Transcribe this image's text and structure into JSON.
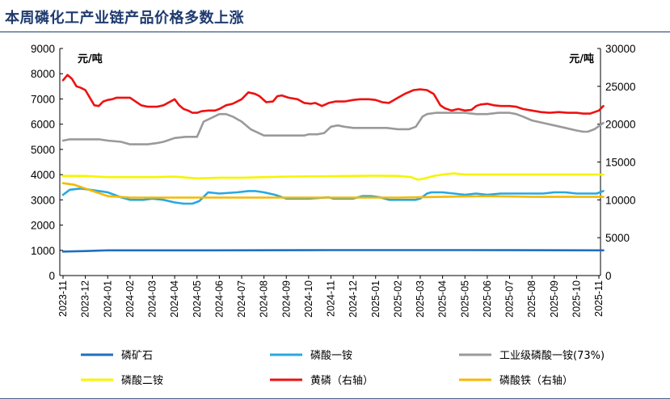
{
  "title": "本周磷化工产业链产品价格多数上涨",
  "chart_data": {
    "type": "line",
    "left_unit": "元/吨",
    "right_unit": "元/吨",
    "y_left": {
      "min": 0,
      "max": 9000,
      "ticks": [
        "0",
        "1000",
        "2000",
        "3000",
        "4000",
        "5000",
        "6000",
        "7000",
        "8000",
        "9000"
      ]
    },
    "y_right": {
      "min": 0,
      "max": 30000,
      "ticks": [
        "0",
        "5000",
        "10000",
        "15000",
        "20000",
        "25000",
        "30000"
      ]
    },
    "x_ticks": [
      "2023-11",
      "2023-12",
      "2024-01",
      "2024-02",
      "2024-03",
      "2024-04",
      "2024-05",
      "2024-06",
      "2024-07",
      "2024-08",
      "2024-09",
      "2024-10",
      "2024-11",
      "2024-12",
      "2025-01",
      "2025-02",
      "2025-03",
      "2025-04",
      "2025-05",
      "2025-06",
      "2025-07",
      "2025-08",
      "2025-09",
      "2025-10",
      "2025-11"
    ],
    "series": [
      {
        "name": "磷矿石",
        "axis": "left",
        "color": "#1f6fbf",
        "x": [
          0,
          1,
          2,
          6,
          12,
          18,
          24.2
        ],
        "y": [
          950,
          970,
          1000,
          1000,
          1010,
          1010,
          1000
        ]
      },
      {
        "name": "磷酸一铵",
        "axis": "left",
        "color": "#28a8e0",
        "x": [
          0,
          0.3,
          0.8,
          1.2,
          2,
          2.6,
          3,
          3.6,
          4,
          4.5,
          5,
          5.4,
          5.8,
          6.1,
          6.5,
          7,
          7.8,
          8.3,
          8.6,
          9,
          9.5,
          10,
          11,
          11.9,
          12.1,
          12.5,
          13,
          13.4,
          13.8,
          14.2,
          14.6,
          15.1,
          15.5,
          15.8,
          16,
          16.3,
          16.5,
          17,
          17.5,
          18,
          18.5,
          19,
          19.6,
          20,
          20.5,
          21,
          21.5,
          22,
          22.5,
          23,
          23.5,
          23.9,
          24.2
        ],
        "y": [
          3200,
          3400,
          3450,
          3400,
          3300,
          3100,
          3000,
          3000,
          3050,
          3000,
          2900,
          2850,
          2850,
          2950,
          3300,
          3250,
          3300,
          3350,
          3350,
          3300,
          3200,
          3050,
          3050,
          3100,
          3050,
          3050,
          3050,
          3150,
          3150,
          3100,
          3000,
          3000,
          3000,
          3000,
          3050,
          3250,
          3300,
          3300,
          3250,
          3200,
          3250,
          3200,
          3250,
          3250,
          3250,
          3250,
          3250,
          3300,
          3300,
          3250,
          3250,
          3250,
          3350
        ]
      },
      {
        "name": "工业级磷酸一铵(73%)",
        "axis": "left",
        "color": "#9a9a9a",
        "x": [
          0,
          0.3,
          1,
          1.6,
          2,
          2.6,
          3,
          3.8,
          4.2,
          4.5,
          5,
          5.5,
          5.8,
          6,
          6.3,
          7,
          7.3,
          7.6,
          8,
          8.4,
          9,
          10,
          10.8,
          11,
          11.4,
          11.7,
          12,
          12.3,
          12.6,
          13,
          13.5,
          14,
          14.5,
          15,
          15.5,
          15.8,
          16.1,
          16.3,
          16.7,
          17,
          17.5,
          18,
          18.5,
          19,
          19.5,
          20,
          20.3,
          20.6,
          21,
          21.5,
          22,
          22.5,
          23,
          23.3,
          23.5,
          23.8,
          24.2
        ],
        "y": [
          5350,
          5400,
          5400,
          5400,
          5350,
          5300,
          5200,
          5200,
          5250,
          5300,
          5450,
          5500,
          5500,
          5500,
          6100,
          6400,
          6400,
          6300,
          6100,
          5800,
          5550,
          5550,
          5550,
          5600,
          5600,
          5650,
          5900,
          5950,
          5900,
          5850,
          5850,
          5850,
          5850,
          5800,
          5800,
          5900,
          6300,
          6400,
          6450,
          6450,
          6450,
          6450,
          6400,
          6400,
          6450,
          6450,
          6400,
          6300,
          6150,
          6050,
          5950,
          5850,
          5750,
          5700,
          5700,
          5800,
          6050
        ]
      },
      {
        "name": "磷酸二铵",
        "axis": "left",
        "color": "#f5f500",
        "x": [
          0,
          1,
          2,
          3,
          4,
          5,
          6,
          7,
          8,
          9,
          10,
          11,
          12,
          13,
          14,
          15,
          15.6,
          15.9,
          16.2,
          16.6,
          17,
          17.5,
          18,
          19,
          20,
          21,
          22,
          23,
          24.2
        ],
        "y": [
          3950,
          3950,
          3900,
          3900,
          3900,
          3920,
          3850,
          3880,
          3880,
          3900,
          3920,
          3930,
          3940,
          3950,
          3960,
          3950,
          3900,
          3800,
          3850,
          3950,
          4000,
          4050,
          4000,
          4000,
          4000,
          4000,
          4000,
          4000,
          4000
        ]
      },
      {
        "name": "黄磷（右轴）",
        "axis": "right",
        "color": "#ee1111",
        "x": [
          0,
          0.2,
          0.4,
          0.6,
          0.8,
          1,
          1.2,
          1.4,
          1.6,
          1.8,
          2,
          2.2,
          2.4,
          2.6,
          3,
          3.5,
          3.8,
          4.2,
          4.5,
          5,
          5.2,
          5.4,
          5.6,
          5.8,
          6,
          6.2,
          6.5,
          6.8,
          7,
          7.3,
          7.6,
          8,
          8.3,
          8.6,
          8.8,
          9.1,
          9.4,
          9.6,
          9.8,
          10.1,
          10.5,
          10.8,
          11.1,
          11.3,
          11.6,
          11.9,
          12.2,
          12.6,
          13,
          13.3,
          13.7,
          14,
          14.3,
          14.6,
          15,
          15.3,
          15.7,
          16,
          16.3,
          16.6,
          16.9,
          17.1,
          17.4,
          17.7,
          18,
          18.3,
          18.5,
          18.7,
          19,
          19.3,
          19.6,
          20,
          20.3,
          20.6,
          21,
          21.4,
          21.8,
          22.2,
          22.6,
          23,
          23.3,
          23.6,
          24,
          24.2
        ],
        "y": [
          25800,
          26500,
          26000,
          25000,
          24800,
          24500,
          23500,
          22500,
          22400,
          23000,
          23200,
          23300,
          23500,
          23500,
          23500,
          22500,
          22300,
          22300,
          22500,
          23300,
          22500,
          22000,
          21800,
          21500,
          21500,
          21700,
          21800,
          21800,
          22000,
          22500,
          22700,
          23300,
          24200,
          24000,
          23700,
          22900,
          23000,
          23700,
          23800,
          23500,
          23300,
          22800,
          22700,
          22800,
          22400,
          22800,
          23000,
          23000,
          23200,
          23300,
          23300,
          23200,
          22900,
          22800,
          23500,
          24000,
          24500,
          24600,
          24500,
          24000,
          22500,
          22100,
          21800,
          22000,
          21800,
          21900,
          22400,
          22600,
          22700,
          22500,
          22400,
          22400,
          22300,
          22000,
          21800,
          21600,
          21500,
          21600,
          21500,
          21500,
          21400,
          21400,
          21800,
          22400
        ]
      },
      {
        "name": "磷酸铁（右轴）",
        "axis": "right",
        "color": "#f5b800",
        "x": [
          0,
          0.5,
          1,
          1.5,
          2,
          2.5,
          3,
          4,
          5,
          6,
          7,
          8,
          9,
          10,
          11,
          12,
          13,
          14,
          15,
          16,
          17,
          18,
          19,
          20,
          21,
          22,
          23,
          24.2
        ],
        "y": [
          12200,
          12000,
          11500,
          11000,
          10500,
          10400,
          10300,
          10300,
          10300,
          10300,
          10300,
          10300,
          10300,
          10300,
          10300,
          10300,
          10300,
          10300,
          10300,
          10350,
          10400,
          10450,
          10500,
          10450,
          10400,
          10400,
          10400,
          10400
        ]
      }
    ],
    "legend": [
      "磷矿石",
      "磷酸一铵",
      "工业级磷酸一铵(73%)",
      "磷酸二铵",
      "黄磷（右轴）",
      "磷酸铁（右轴）"
    ],
    "legend_placement": "bottom",
    "grid": false
  }
}
